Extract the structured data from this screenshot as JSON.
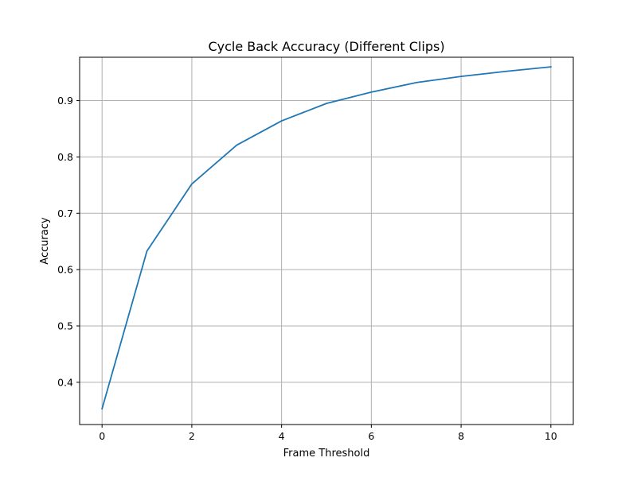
{
  "chart_data": {
    "type": "line",
    "title": "Cycle Back Accuracy (Different Clips)",
    "xlabel": "Frame Threshold",
    "ylabel": "Accuracy",
    "xlim": [
      -0.5,
      10.5
    ],
    "ylim": [
      0.325,
      0.977
    ],
    "x_ticks": [
      0,
      2,
      4,
      6,
      8,
      10
    ],
    "y_ticks": [
      0.4,
      0.5,
      0.6,
      0.7,
      0.8,
      0.9
    ],
    "x_tick_labels": [
      "0",
      "2",
      "4",
      "6",
      "8",
      "10"
    ],
    "y_tick_labels": [
      "0.4",
      "0.5",
      "0.6",
      "0.7",
      "0.8",
      "0.9"
    ],
    "grid": true,
    "series": [
      {
        "color": "#1f77b4",
        "x": [
          0,
          1,
          2,
          3,
          4,
          5,
          6,
          7,
          8,
          9,
          10
        ],
        "y": [
          0.353,
          0.633,
          0.752,
          0.821,
          0.864,
          0.895,
          0.915,
          0.932,
          0.943,
          0.952,
          0.96
        ]
      }
    ]
  }
}
